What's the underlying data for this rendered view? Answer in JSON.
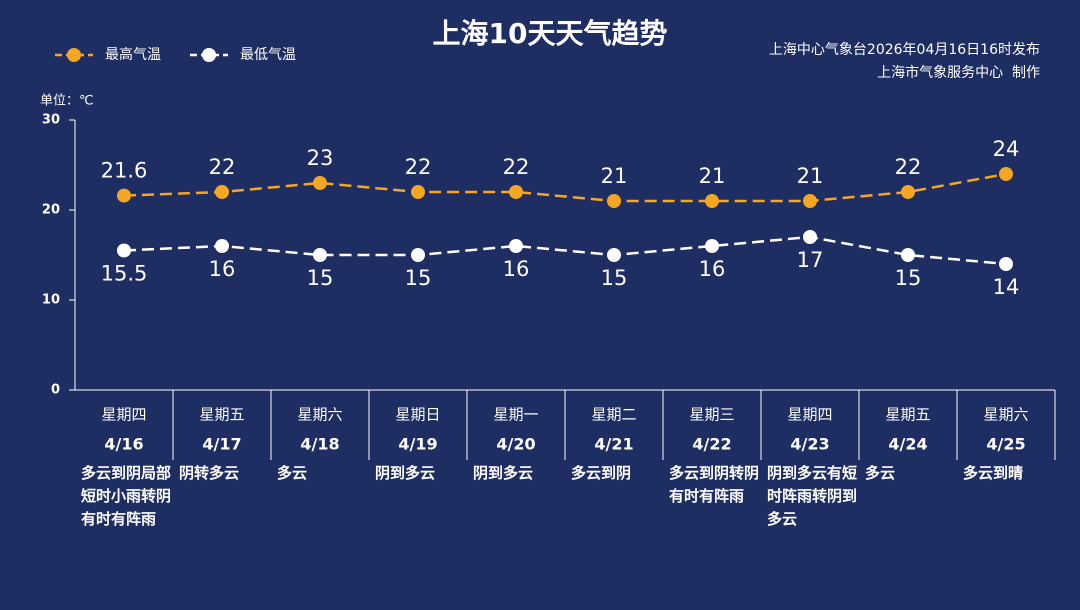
{
  "chart_data": {
    "type": "line",
    "title": "上海10天天气趋势",
    "publisher": "上海中心气象台2026年04月16日16时发布",
    "producer": "上海市气象服务中心  制作",
    "y_label": "单位：℃",
    "categories": [
      "4/16",
      "4/17",
      "4/18",
      "4/19",
      "4/20",
      "4/21",
      "4/22",
      "4/23",
      "4/24",
      "4/25"
    ],
    "weekdays": [
      {
        "label": "星期四",
        "color": "#ffffff"
      },
      {
        "label": "星期五",
        "color": "#ffffff"
      },
      {
        "label": "星期六",
        "color": "#f5a623"
      },
      {
        "label": "星期日",
        "color": "#f5a623"
      },
      {
        "label": "星期一",
        "color": "#ffffff"
      },
      {
        "label": "星期二",
        "color": "#ffffff"
      },
      {
        "label": "星期三",
        "color": "#ffffff"
      },
      {
        "label": "星期四",
        "color": "#ffffff"
      },
      {
        "label": "星期五",
        "color": "#ffffff"
      },
      {
        "label": "星期六",
        "color": "#f5a623"
      }
    ],
    "weather": [
      "多云到阴局部短时小雨转阴有时有阵雨",
      "阴转多云",
      "多云",
      "阴到多云",
      "阴到多云",
      "多云到阴",
      "多云到阴转阴有时有阵雨",
      "阴到多云有短时阵雨转阴到多云",
      "多云",
      "多云到晴"
    ],
    "series": [
      {
        "name": "最高气温",
        "color": "#f5a623",
        "values": [
          21.6,
          22,
          23,
          22,
          22,
          21,
          21,
          21,
          22,
          24
        ]
      },
      {
        "name": "最低气温",
        "color": "#ffffff",
        "values": [
          15.5,
          16,
          15,
          15,
          16,
          15,
          16,
          17,
          15,
          14
        ]
      }
    ],
    "ylim": [
      0,
      30
    ],
    "yticks": [
      0,
      10,
      20,
      30
    ]
  }
}
